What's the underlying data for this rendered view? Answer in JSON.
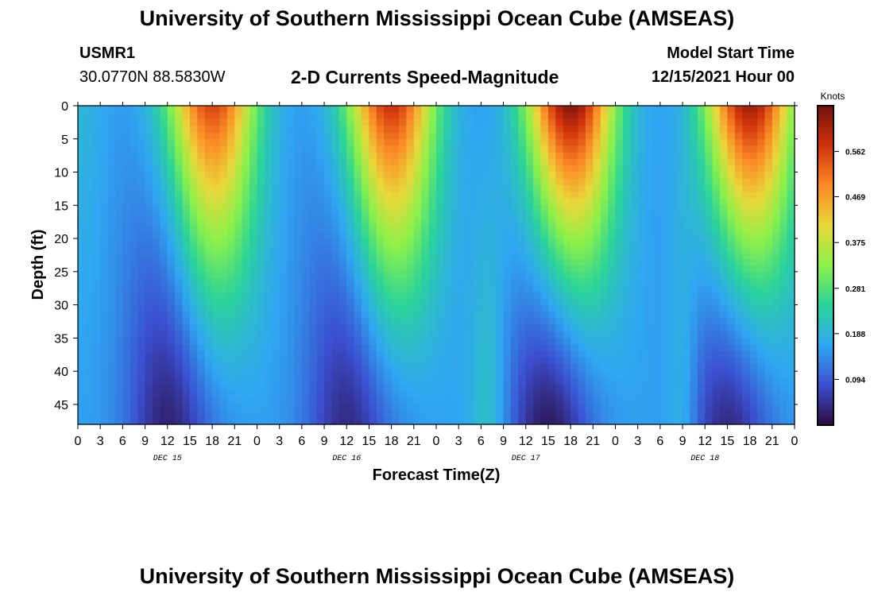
{
  "page": {
    "title": "University of Southern Mississippi Ocean Cube (AMSEAS)",
    "footer_title": "University of Southern Mississippi Ocean Cube (AMSEAS)"
  },
  "station": {
    "id": "USMR1",
    "location": "30.0770N  88.5830W"
  },
  "model": {
    "label": "Model Start Time",
    "start": "12/15/2021 Hour 00"
  },
  "chart_data": {
    "type": "heatmap",
    "title": "2-D Currents Speed-Magnitude",
    "xlabel": "Forecast Time(Z)",
    "ylabel": "Depth (ft)",
    "x_unit": "hours from model start",
    "xlim": [
      0,
      96
    ],
    "ylim": [
      0,
      48
    ],
    "y_ticks": [
      0,
      5,
      10,
      15,
      20,
      25,
      30,
      35,
      40,
      45
    ],
    "x_ticks": [
      {
        "h": 0,
        "label": "0"
      },
      {
        "h": 3,
        "label": "3"
      },
      {
        "h": 6,
        "label": "6"
      },
      {
        "h": 9,
        "label": "9"
      },
      {
        "h": 12,
        "label": "12"
      },
      {
        "h": 15,
        "label": "15"
      },
      {
        "h": 18,
        "label": "18"
      },
      {
        "h": 21,
        "label": "21"
      },
      {
        "h": 24,
        "label": "0"
      },
      {
        "h": 27,
        "label": "3"
      },
      {
        "h": 30,
        "label": "6"
      },
      {
        "h": 33,
        "label": "9"
      },
      {
        "h": 36,
        "label": "12"
      },
      {
        "h": 39,
        "label": "15"
      },
      {
        "h": 42,
        "label": "18"
      },
      {
        "h": 45,
        "label": "21"
      },
      {
        "h": 48,
        "label": "0"
      },
      {
        "h": 51,
        "label": "3"
      },
      {
        "h": 54,
        "label": "6"
      },
      {
        "h": 57,
        "label": "9"
      },
      {
        "h": 60,
        "label": "12"
      },
      {
        "h": 63,
        "label": "15"
      },
      {
        "h": 66,
        "label": "18"
      },
      {
        "h": 69,
        "label": "21"
      },
      {
        "h": 72,
        "label": "0"
      },
      {
        "h": 75,
        "label": "3"
      },
      {
        "h": 78,
        "label": "6"
      },
      {
        "h": 81,
        "label": "9"
      },
      {
        "h": 84,
        "label": "12"
      },
      {
        "h": 87,
        "label": "15"
      },
      {
        "h": 90,
        "label": "18"
      },
      {
        "h": 93,
        "label": "21"
      },
      {
        "h": 96,
        "label": "0"
      }
    ],
    "day_labels": [
      {
        "h": 12,
        "label": "DEC 15"
      },
      {
        "h": 36,
        "label": "DEC 16"
      },
      {
        "h": 60,
        "label": "DEC 17"
      },
      {
        "h": 84,
        "label": "DEC 18"
      }
    ],
    "colorbar": {
      "unit": "Knots",
      "vmin": 0.0,
      "vmax": 0.656,
      "ticks": [
        0.094,
        0.188,
        0.281,
        0.375,
        0.469,
        0.562
      ],
      "tick_labels": [
        "0.094",
        "0.188",
        "0.281",
        "0.375",
        "0.469",
        "0.562"
      ],
      "colors": [
        "#2c0a3f",
        "#3b50d0",
        "#2fa7f2",
        "#2ad39a",
        "#8af14a",
        "#e9d83a",
        "#fb8a26",
        "#d2330c",
        "#701009"
      ]
    },
    "speed_pattern": {
      "description": "Estimated speed-magnitude field: high near surface during flood/ebb peaks, low near bottom",
      "surface_peaks_hours": [
        18,
        42,
        66,
        90
      ],
      "surface_peak_knots": [
        0.56,
        0.58,
        0.64,
        0.62
      ],
      "bottom_min_hours": [
        12,
        36,
        63,
        87
      ],
      "bottom_min_knots": [
        0.03,
        0.04,
        0.02,
        0.04
      ]
    }
  }
}
